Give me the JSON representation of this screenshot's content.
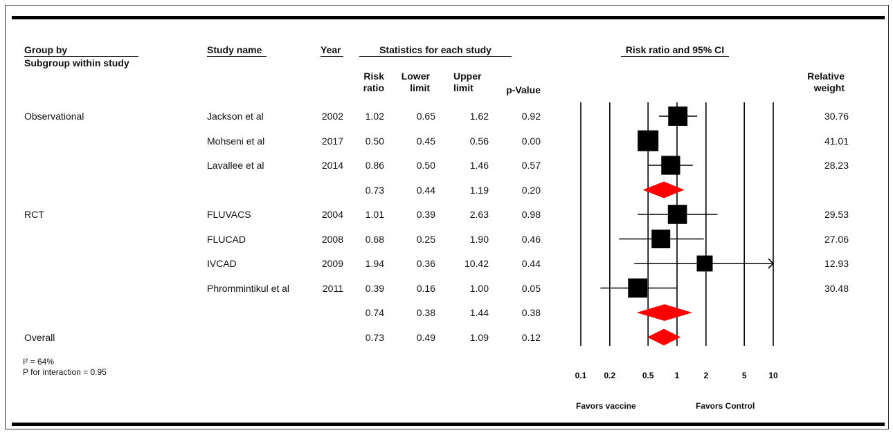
{
  "headers": {
    "group_by": "Group by",
    "subgroup": "Subgroup within study",
    "study_name": "Study name",
    "year": "Year",
    "stats_title": "Statistics for each study",
    "risk_ratio": [
      "Risk",
      "ratio"
    ],
    "lower": [
      "Lower",
      "limit"
    ],
    "upper": [
      "Upper",
      "limit"
    ],
    "pvalue": "p-Value",
    "plot_title": "Risk ratio and 95% CI",
    "relweight": [
      "Relative",
      "weight"
    ]
  },
  "footer": {
    "i2": "I² = 64%",
    "p_interaction": "P for interaction = 0.95",
    "favors_left": "Favors vaccine",
    "favors_right": "Favors Control"
  },
  "rows": [
    {
      "group": "Observational",
      "study": "Jackson et al",
      "year": "2002",
      "rr": "1.02",
      "lower": "0.65",
      "upper": "1.62",
      "p": "0.92",
      "weight": "30.76"
    },
    {
      "group": "",
      "study": "Mohseni et al",
      "year": "2017",
      "rr": "0.50",
      "lower": "0.45",
      "upper": "0.56",
      "p": "0.00",
      "weight": "41.01"
    },
    {
      "group": "",
      "study": "Lavallee et al",
      "year": "2014",
      "rr": "0.86",
      "lower": "0.50",
      "upper": "1.46",
      "p": "0.57",
      "weight": "28.23"
    },
    {
      "group": "",
      "study": "",
      "year": "",
      "rr": "0.73",
      "lower": "0.44",
      "upper": "1.19",
      "p": "0.20",
      "weight": ""
    },
    {
      "group": "RCT",
      "study": "FLUVACS",
      "year": "2004",
      "rr": "1.01",
      "lower": "0.39",
      "upper": "2.63",
      "p": "0.98",
      "weight": "29.53"
    },
    {
      "group": "",
      "study": "FLUCAD",
      "year": "2008",
      "rr": "0.68",
      "lower": "0.25",
      "upper": "1.90",
      "p": "0.46",
      "weight": "27.06"
    },
    {
      "group": "",
      "study": "IVCAD",
      "year": "2009",
      "rr": "1.94",
      "lower": "0.36",
      "upper": "10.42",
      "p": "0.44",
      "weight": "12.93"
    },
    {
      "group": "",
      "study": "Phrommintikul et al",
      "year": "2011",
      "rr": "0.39",
      "lower": "0.16",
      "upper": "1.00",
      "p": "0.05",
      "weight": "30.48"
    },
    {
      "group": "",
      "study": "",
      "year": "",
      "rr": "0.74",
      "lower": "0.38",
      "upper": "1.44",
      "p": "0.38",
      "weight": ""
    },
    {
      "group": "Overall",
      "study": "",
      "year": "",
      "rr": "0.73",
      "lower": "0.49",
      "upper": "1.09",
      "p": "0.12",
      "weight": ""
    }
  ],
  "chart_data": {
    "type": "scatter",
    "title": "Risk ratio and 95% CI",
    "x_scale": "log",
    "xlim": [
      0.1,
      10
    ],
    "x_ticks": [
      "0.1",
      "0.2",
      "0.5",
      "1",
      "2",
      "5",
      "10"
    ],
    "reference_lines": [
      0.1,
      0.2,
      0.5,
      1,
      2,
      5,
      10
    ],
    "study_color": "#000000",
    "summary_color": "#ff0000",
    "points": [
      {
        "study": "Jackson et al",
        "rr": 1.02,
        "lower": 0.65,
        "upper": 1.62,
        "weight": 30.76,
        "kind": "study"
      },
      {
        "study": "Mohseni et al",
        "rr": 0.5,
        "lower": 0.45,
        "upper": 0.56,
        "weight": 41.01,
        "kind": "study"
      },
      {
        "study": "Lavallee et al",
        "rr": 0.86,
        "lower": 0.5,
        "upper": 1.46,
        "weight": 28.23,
        "kind": "study"
      },
      {
        "study": "Observational",
        "rr": 0.73,
        "lower": 0.44,
        "upper": 1.19,
        "kind": "summary"
      },
      {
        "study": "FLUVACS",
        "rr": 1.01,
        "lower": 0.39,
        "upper": 2.63,
        "weight": 29.53,
        "kind": "study"
      },
      {
        "study": "FLUCAD",
        "rr": 0.68,
        "lower": 0.25,
        "upper": 1.9,
        "weight": 27.06,
        "kind": "study"
      },
      {
        "study": "IVCAD",
        "rr": 1.94,
        "lower": 0.36,
        "upper": 10.42,
        "weight": 12.93,
        "kind": "study"
      },
      {
        "study": "Phrommintikul et al",
        "rr": 0.39,
        "lower": 0.16,
        "upper": 1.0,
        "weight": 30.48,
        "kind": "study"
      },
      {
        "study": "RCT",
        "rr": 0.74,
        "lower": 0.38,
        "upper": 1.44,
        "kind": "summary"
      },
      {
        "study": "Overall",
        "rr": 0.73,
        "lower": 0.49,
        "upper": 1.09,
        "kind": "summary"
      }
    ]
  }
}
